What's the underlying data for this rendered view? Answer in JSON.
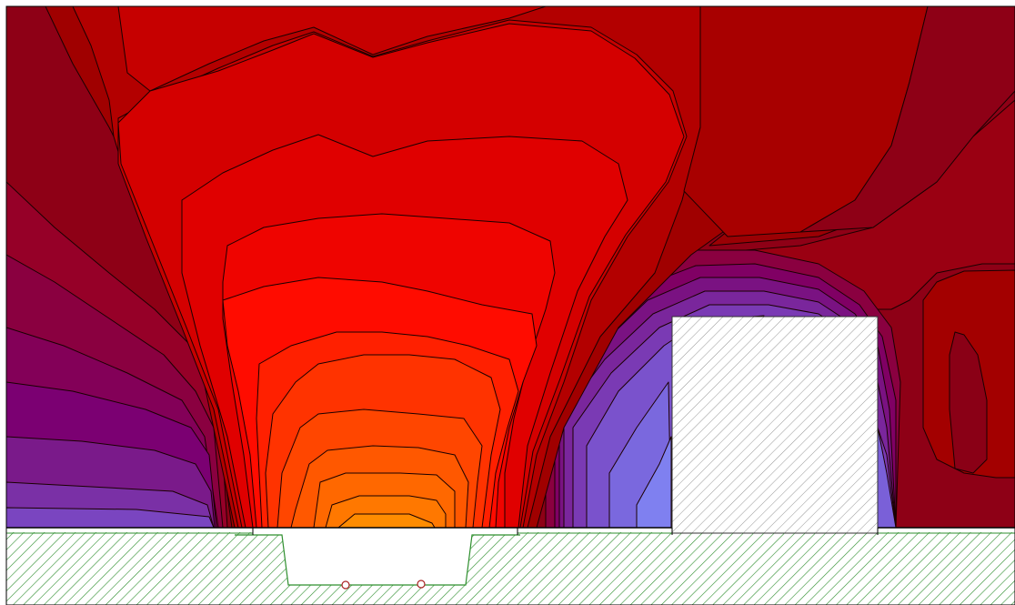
{
  "figure": {
    "kind": "field contour plot",
    "palette": {
      "outer_dark_red": "#8e0016",
      "dark_red": "#a00000",
      "red": "#d40000",
      "bright_red": "#ff0c00",
      "orange_red": "#ff4a00",
      "orange": "#ff8000",
      "maroon": "#83003a",
      "purple": "#7a1f8c",
      "blue_violet": "#7f7ff0",
      "ground_hatch": "#2f8f2f",
      "contour_line": "#1a0000",
      "obstacle_hatch": "#7a7a7a"
    },
    "ground": {
      "hatch": "diagonal-green"
    },
    "trench": {
      "markers": [
        "conductor",
        "conductor"
      ]
    },
    "obstacle": {
      "hatch": "diagonal-grey"
    }
  }
}
